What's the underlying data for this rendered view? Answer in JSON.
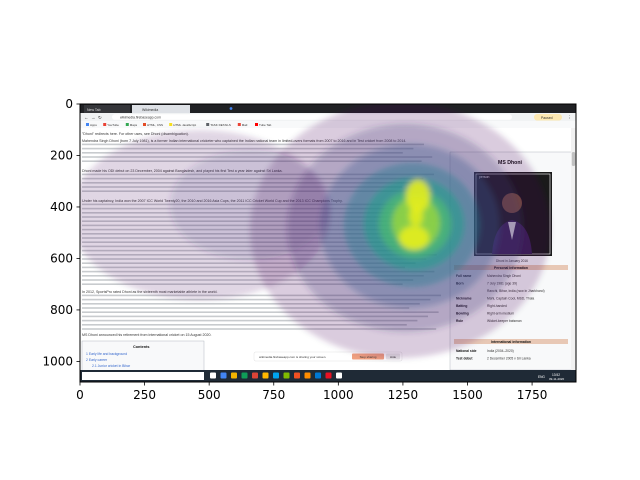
{
  "figure": {
    "x_ticks": [
      "0",
      "250",
      "500",
      "750",
      "1000",
      "1250",
      "1500",
      "1750"
    ],
    "y_ticks": [
      "0",
      "200",
      "400",
      "600",
      "800",
      "1000"
    ],
    "xlim": [
      0,
      1920
    ],
    "ylim": [
      1080,
      0
    ]
  },
  "browser": {
    "tabs": [
      "New Tab",
      "Wikimedia"
    ],
    "address": "wikimedia.firebaseapp.com",
    "bookmarks": [
      "Apps",
      "YouTube",
      "Maps",
      "HTML, CSS",
      "HTML JavaScript",
      "TASK DETAILS",
      "Mail",
      "Tube Tab"
    ],
    "profile_label": "Paused"
  },
  "article": {
    "hatnote": "\"Dhoni\" redirects here. For other uses, see Dhoni (disambiguation).",
    "paragraph_1": "Mahendra Singh Dhoni (born 7 July 1981), is a former Indian international cricketer who captained the Indian national team in limited-overs formats from 2007 to 2016 and in Test cricket from 2008 to 2014.",
    "paragraph_2": "Dhoni made his ODI debut on 23 December, 2004 against Bangladesh, and played his first Test a year later against Sri Lanka.",
    "paragraph_3": "Under his captaincy, India won the 2007 ICC World Twenty20, the 2010 and 2016 Asia Cups, the 2011 ICC Cricket World Cup and the 2013 ICC Champions Trophy.",
    "paragraph_4": "In 2012, SportsPro rated Dhoni as the sixteenth most marketable athlete in the world.",
    "footer_line": "MS Dhoni announced his retirement from international cricket on 15 August 2020.",
    "contents_title": "Contents",
    "contents_items": [
      "1 Early life and background",
      "2 Early career",
      "2.1 Junior cricket in Bihar"
    ]
  },
  "infobox": {
    "title": "MS Dhoni",
    "photo_label": "person",
    "caption": "Dhoni in January 2016",
    "section_personal": "Personal information",
    "rows": [
      {
        "label": "Full name",
        "value": "Mahendra Singh Dhoni"
      },
      {
        "label": "Born",
        "value": "7 July 1981 (age 39)"
      },
      {
        "label": "",
        "value": "Ranchi, Bihar, India (now in Jharkhand)"
      },
      {
        "label": "Nickname",
        "value": "Mahi, Captain Cool, MSD, Thala"
      },
      {
        "label": "Batting",
        "value": "Right-handed"
      },
      {
        "label": "Bowling",
        "value": "Right-arm medium"
      },
      {
        "label": "Role",
        "value": "Wicket-keeper batsman"
      }
    ],
    "section_international": "International information",
    "rows_international": [
      {
        "label": "National side",
        "value": "India (2004–2020)"
      },
      {
        "label": "Test debut",
        "value": "2 December 2005 v Sri Lanka"
      }
    ]
  },
  "share_bar": {
    "message": "wikimedia.firebaseapp.com is sharing your screen.",
    "stop_label": "Stop sharing",
    "hide_label": "Hide"
  },
  "taskbar": {
    "language": "ENG",
    "time": "13:52",
    "date": "09-11-2020"
  }
}
